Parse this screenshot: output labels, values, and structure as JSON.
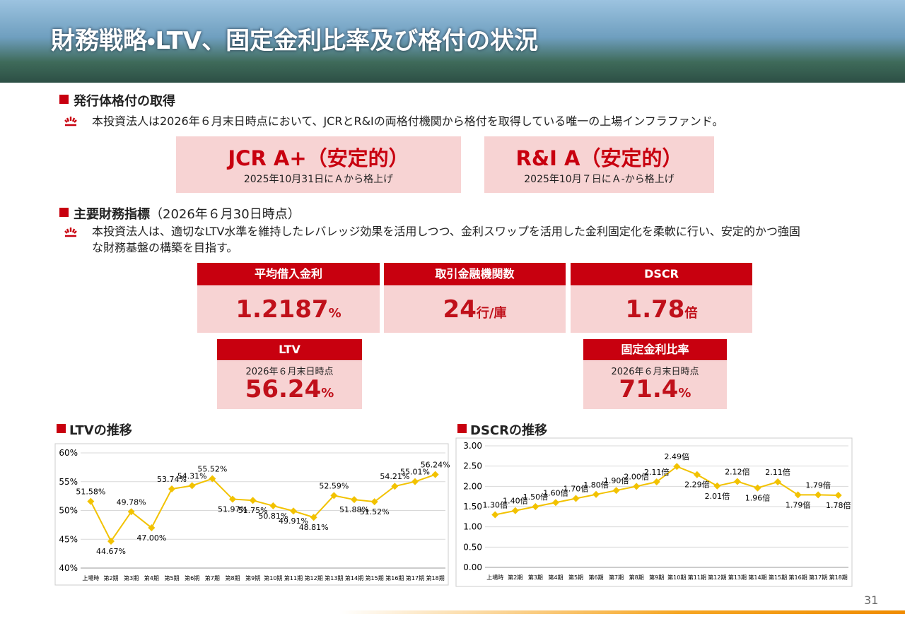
{
  "header": {
    "title": "財務戦略・LTV、固定金利比率及び格付の状況"
  },
  "section1": {
    "heading": "発行体格付の取得",
    "text": "本投資法人は2026年６月末日時点において、JCRとR&Iの両格付機関から格付を取得している唯一の上場インフラファンド。",
    "ratings": [
      {
        "title": "JCR A+（安定的）",
        "note": "2025年10月31日にＡから格上げ"
      },
      {
        "title": "R&I A（安定的）",
        "note": "2025年10月７日にＡ-から格上げ"
      }
    ]
  },
  "section2": {
    "heading": "主要財務指標",
    "heading_note": "（2026年６月30日時点）",
    "text": "本投資法人は、適切なLTV水準を維持したレバレッジ効果を活用しつつ、金利スワップを活用した金利固定化を柔軟に行い、安定的かつ強固な財務基盤の構築を目指す。",
    "metrics": [
      {
        "label": "平均借入金利",
        "value": "1.2187",
        "unit": "%"
      },
      {
        "label": "取引金融機関数",
        "value": "24",
        "unit": "行/庫"
      },
      {
        "label": "DSCR",
        "value": "1.78",
        "unit": "倍"
      },
      {
        "label": "LTV",
        "note": "2026年６月末日時点",
        "value": "56.24",
        "unit": "%"
      },
      {
        "label": "固定金利比率",
        "note": "2026年６月末日時点",
        "value": "71.4",
        "unit": "%"
      }
    ]
  },
  "chart_data": [
    {
      "type": "line",
      "title": "LTVの推移",
      "color": "#f2c200",
      "categories": [
        "上場時",
        "第2期",
        "第3期",
        "第4期",
        "第5期",
        "第6期",
        "第7期",
        "第8期",
        "第9期",
        "第10期",
        "第11期",
        "第12期",
        "第13期",
        "第14期",
        "第15期",
        "第16期",
        "第17期",
        "第18期"
      ],
      "values": [
        51.58,
        44.67,
        49.78,
        47.0,
        53.74,
        54.31,
        55.52,
        51.97,
        51.75,
        50.81,
        49.91,
        48.81,
        52.59,
        51.88,
        51.52,
        54.21,
        55.01,
        56.24
      ],
      "value_labels": [
        "51.58%",
        "44.67%",
        "49.78%",
        "47.00%",
        "53.74%",
        "54.31%",
        "55.52%",
        "51.97%",
        "51.75%",
        "50.81%",
        "49.91%",
        "48.81%",
        "52.59%",
        "51.88%",
        "51.52%",
        "54.21%",
        "55.01%",
        "56.24%"
      ],
      "ylim": [
        40,
        60
      ],
      "yticks": [
        {
          "value": 40,
          "label": "40%"
        },
        {
          "value": 45,
          "label": "45%"
        },
        {
          "value": 50,
          "label": "50%"
        },
        {
          "value": 55,
          "label": "55%"
        },
        {
          "value": 60,
          "label": "60%"
        }
      ]
    },
    {
      "type": "line",
      "title": "DSCRの推移",
      "color": "#f2c200",
      "categories": [
        "上場時",
        "第2期",
        "第3期",
        "第4期",
        "第5期",
        "第6期",
        "第7期",
        "第8期",
        "第9期",
        "第10期",
        "第11期",
        "第12期",
        "第13期",
        "第14期",
        "第15期",
        "第16期",
        "第17期",
        "第18期"
      ],
      "values": [
        1.3,
        1.4,
        1.5,
        1.6,
        1.7,
        1.8,
        1.9,
        2.0,
        2.11,
        2.49,
        2.29,
        2.01,
        2.12,
        1.96,
        2.11,
        1.79,
        1.79,
        1.78
      ],
      "value_labels": [
        "1.30倍",
        "1.40倍",
        "1.50倍",
        "1.60倍",
        "1.70倍",
        "1.80倍",
        "1.90倍",
        "2.00倍",
        "2.11倍",
        "2.49倍",
        "2.29倍",
        "2.01倍",
        "2.12倍",
        "1.96倍",
        "2.11倍",
        "1.79倍",
        "1.79倍",
        "1.78倍"
      ],
      "ylim": [
        0,
        3
      ],
      "yticks": [
        {
          "value": 0,
          "label": "0.00"
        },
        {
          "value": 0.5,
          "label": "0.50"
        },
        {
          "value": 1,
          "label": "1.00"
        },
        {
          "value": 1.5,
          "label": "1.50"
        },
        {
          "value": 2,
          "label": "2.00"
        },
        {
          "value": 2.5,
          "label": "2.50"
        },
        {
          "value": 3,
          "label": "3.00"
        }
      ]
    }
  ],
  "footer": {
    "page": "31"
  }
}
